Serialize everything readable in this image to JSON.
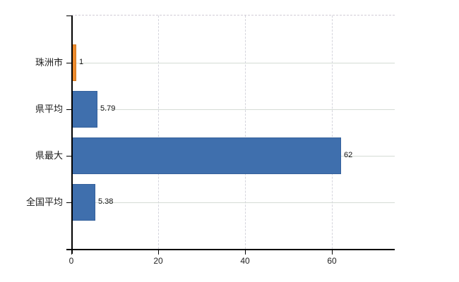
{
  "chart_data": {
    "type": "bar",
    "orientation": "horizontal",
    "title": "",
    "xlabel": "",
    "ylabel": "",
    "categories": [
      "珠洲市",
      "県平均",
      "県最大",
      "全国平均"
    ],
    "values": [
      1,
      5.79,
      62,
      5.38
    ],
    "value_labels": [
      "1",
      "5.79",
      "62",
      "5.38"
    ],
    "bar_color_keys": [
      "highlight",
      "default",
      "default",
      "default"
    ],
    "xlim": [
      0,
      74.5
    ],
    "x_ticks": [
      0,
      20,
      40,
      60
    ],
    "x_tick_labels": [
      "0",
      "20",
      "40",
      "60"
    ],
    "grid": true,
    "legend": false
  },
  "colors": {
    "highlight": "#ed8b2e",
    "highlight_border": "#d2771f",
    "default": "#3f6fad",
    "default_border": "#35619c",
    "vertical_gridline": "#d4d4dc",
    "horizontal_gridline": "#d5dcd5",
    "top_border": "#d0ccd6",
    "axis": "#000000",
    "text": "#1a1a1a",
    "background": "#ffffff"
  }
}
